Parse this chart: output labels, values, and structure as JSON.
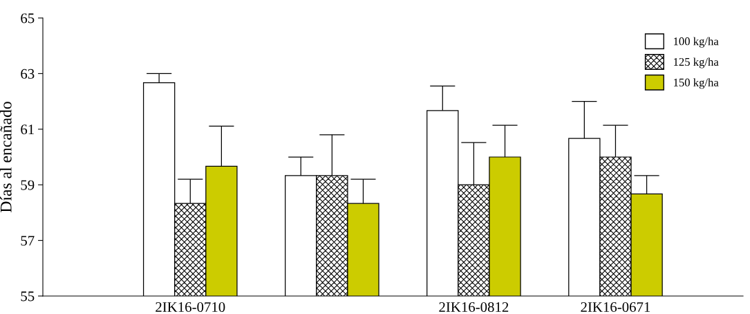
{
  "chart_data": {
    "type": "bar",
    "ylabel": "Días al encañado",
    "categories": [
      "2IK16-0710",
      null,
      "2IK16-0812",
      "2IK16-0671"
    ],
    "series": [
      {
        "name": "100 kg/ha",
        "color": "#ffffff",
        "values": [
          62.67,
          59.33,
          61.67,
          60.67
        ],
        "errors": [
          [
            62.67,
            63.0
          ],
          [
            59.33,
            60.0
          ],
          [
            61.67,
            62.55
          ],
          [
            60.67,
            62.0
          ]
        ]
      },
      {
        "name": "125 kg/ha",
        "color": "#000000",
        "values": [
          58.33,
          59.33,
          59.0,
          60.0
        ],
        "errors": [
          [
            58.33,
            59.2
          ],
          [
            59.33,
            60.8
          ],
          [
            59.0,
            60.52
          ],
          [
            60.0,
            61.14
          ]
        ]
      },
      {
        "name": "150 kg/ha",
        "color": "#cccc00",
        "values": [
          59.67,
          58.33,
          60.0,
          58.67
        ],
        "errors": [
          [
            59.67,
            61.11
          ],
          [
            58.33,
            59.2
          ],
          [
            60.0,
            61.14
          ],
          [
            58.67,
            59.33
          ]
        ]
      }
    ],
    "ylim": [
      55,
      65
    ],
    "yticks": [
      55,
      57,
      59,
      61,
      63,
      65
    ],
    "grid": false,
    "legend": "top right"
  }
}
